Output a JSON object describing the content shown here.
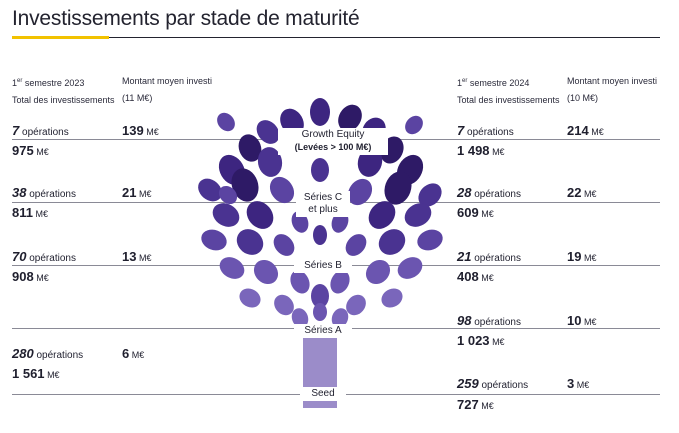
{
  "title": "Investissements par stade de maturité",
  "header_left": {
    "period_sup": "er",
    "period_main": "1",
    "period_rest": " semestre 2023",
    "total_label": "Total des investissements",
    "avg_label": "Montant moyen investi",
    "avg_value": "(11 M€)"
  },
  "header_right": {
    "period_sup": "er",
    "period_main": "1",
    "period_rest": " semestre 2024",
    "total_label": "Total des investissements",
    "avg_label": "Montant moyen investi",
    "avg_value": "(10 M€)"
  },
  "unit_ops": "opérations",
  "unit_amount": "M€",
  "chart_data": {
    "type": "table",
    "title": "Investissements par stade de maturité",
    "stages": [
      "Growth Equity (Levées > 100 M€)",
      "Séries C et plus",
      "Séries B",
      "Séries A",
      "Seed"
    ],
    "stage_labels": [
      {
        "main": "Growth Equity",
        "sub": "(Levées > 100 M€)"
      },
      {
        "main": "Séries C",
        "sub2": "et plus"
      },
      {
        "main": "Séries B"
      },
      {
        "main": "Séries A"
      },
      {
        "main": "Seed"
      }
    ],
    "series": [
      {
        "name": "1er semestre 2023",
        "operations": [
          7,
          38,
          70,
          280,
          null
        ],
        "total": [
          "975",
          "811",
          "908",
          "1 561",
          null
        ],
        "average": [
          "139",
          "21",
          "13",
          "6",
          null
        ]
      },
      {
        "name": "1er semestre 2024",
        "operations": [
          7,
          28,
          21,
          98,
          259
        ],
        "total": [
          "1 498",
          "609",
          "408",
          "1 023",
          "727"
        ],
        "average": [
          "214",
          "22",
          "19",
          "10",
          "3"
        ]
      }
    ]
  }
}
